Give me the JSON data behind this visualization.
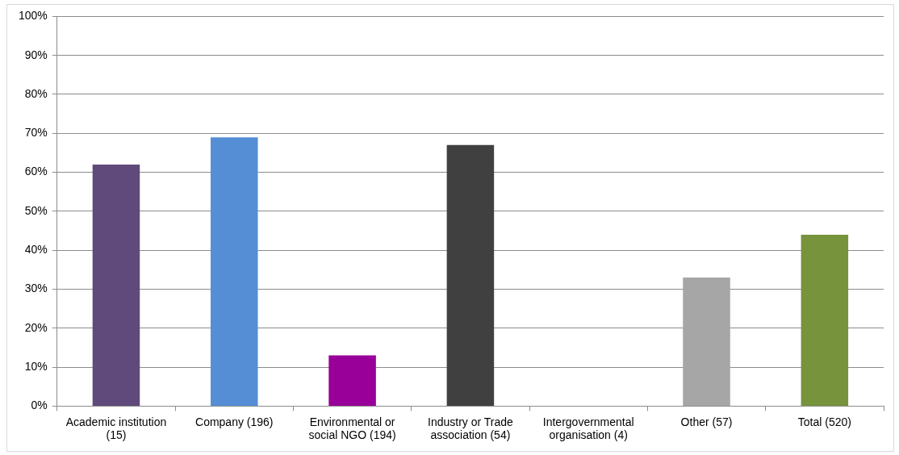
{
  "chart_data": {
    "type": "bar",
    "categories": [
      "Academic institution (15)",
      "Company (196)",
      "Environmental or social NGO (194)",
      "Industry or Trade association (54)",
      "Intergovernmental organisation (4)",
      "Other (57)",
      "Total (520)"
    ],
    "values": [
      62,
      69,
      13,
      67,
      0,
      33,
      44
    ],
    "colors": [
      "#604a7b",
      "#558ed5",
      "#990099",
      "#404040",
      "#4f81bd",
      "#a6a6a6",
      "#77933c"
    ],
    "ylim": [
      0,
      100
    ],
    "yticks": [
      {
        "value": 0,
        "label": "0%"
      },
      {
        "value": 10,
        "label": "10%"
      },
      {
        "value": 20,
        "label": "20%"
      },
      {
        "value": 30,
        "label": "30%"
      },
      {
        "value": 40,
        "label": "40%"
      },
      {
        "value": 50,
        "label": "50%"
      },
      {
        "value": 60,
        "label": "60%"
      },
      {
        "value": 70,
        "label": "70%"
      },
      {
        "value": 80,
        "label": "80%"
      },
      {
        "value": 90,
        "label": "90%"
      },
      {
        "value": 100,
        "label": "100%"
      }
    ],
    "grid": "y",
    "legend": false
  }
}
